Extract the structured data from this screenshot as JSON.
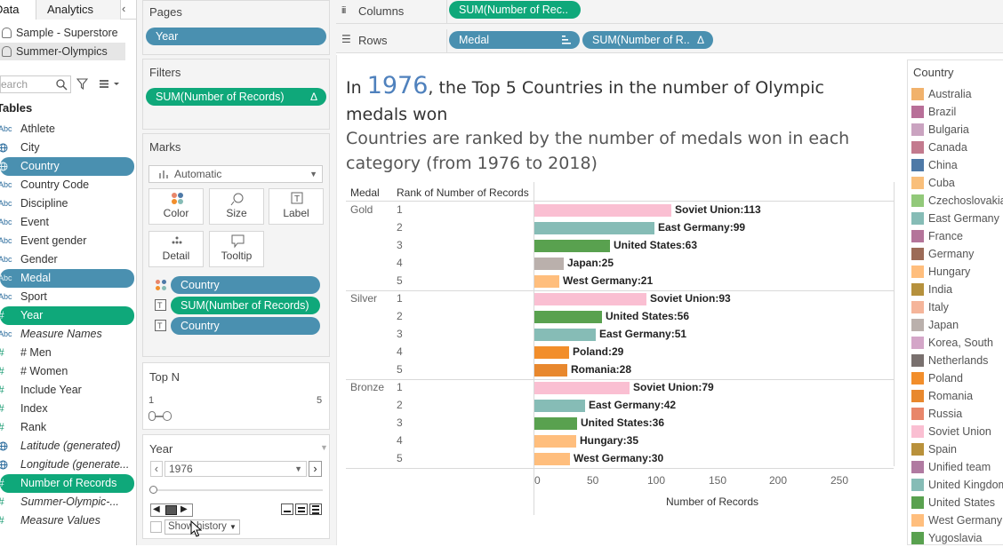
{
  "data_pane": {
    "tabs": [
      "Data",
      "Analytics"
    ],
    "collapse_icon": "chevron-left-icon",
    "datasources": [
      "Sample - Superstore",
      "Summer-Olympics"
    ],
    "search_placeholder": "earch",
    "tables_title": "Tables",
    "fields": [
      {
        "label": "Athlete",
        "icon": "Abc",
        "style": "",
        "type": "dim"
      },
      {
        "label": "City",
        "icon": "globe",
        "style": "",
        "type": "geo"
      },
      {
        "label": "Country",
        "icon": "globe",
        "style": "blue",
        "type": "geo"
      },
      {
        "label": "Country Code",
        "icon": "Abc",
        "style": "",
        "type": "dim"
      },
      {
        "label": "Discipline",
        "icon": "Abc",
        "style": "",
        "type": "dim"
      },
      {
        "label": "Event",
        "icon": "Abc",
        "style": "",
        "type": "dim"
      },
      {
        "label": "Event gender",
        "icon": "Abc",
        "style": "",
        "type": "dim"
      },
      {
        "label": "Gender",
        "icon": "Abc",
        "style": "",
        "type": "dim"
      },
      {
        "label": "Medal",
        "icon": "Abc",
        "style": "blue",
        "type": "dim"
      },
      {
        "label": "Sport",
        "icon": "Abc",
        "style": "",
        "type": "dim"
      },
      {
        "label": "Year",
        "icon": "#",
        "style": "green",
        "type": "num"
      },
      {
        "label": "Measure Names",
        "icon": "Abc",
        "style": "italic",
        "type": "dim"
      },
      {
        "label": "# Men",
        "icon": "#",
        "style": "",
        "type": "num"
      },
      {
        "label": "# Women",
        "icon": "#",
        "style": "",
        "type": "num"
      },
      {
        "label": "Include Year",
        "icon": "#",
        "style": "",
        "type": "num"
      },
      {
        "label": "Index",
        "icon": "#",
        "style": "",
        "type": "num"
      },
      {
        "label": "Rank",
        "icon": "#",
        "style": "",
        "type": "num"
      },
      {
        "label": "Latitude (generated)",
        "icon": "globe",
        "style": "italic",
        "type": "geo"
      },
      {
        "label": "Longitude (generate...",
        "icon": "globe",
        "style": "italic",
        "type": "geo"
      },
      {
        "label": "Number of Records",
        "icon": "#",
        "style": "green",
        "type": "num"
      },
      {
        "label": "Summer-Olympic-...",
        "icon": "#",
        "style": "italic",
        "type": "num"
      },
      {
        "label": "Measure Values",
        "icon": "#",
        "style": "italic",
        "type": "num"
      }
    ]
  },
  "pages": {
    "title": "Pages",
    "pill": "Year"
  },
  "filters": {
    "title": "Filters",
    "pill": "SUM(Number of Records)",
    "pill_icon": "Δ"
  },
  "marks": {
    "title": "Marks",
    "type": "Automatic",
    "buttons": [
      "Color",
      "Size",
      "Label",
      "Detail",
      "Tooltip"
    ],
    "pills": [
      {
        "icon": "color-dots-icon",
        "label": "Country"
      },
      {
        "icon": "text-T-icon",
        "label": "SUM(Number of Records)"
      },
      {
        "icon": "text-T-icon",
        "label": "Country"
      }
    ]
  },
  "topn": {
    "title": "Top N",
    "min": "1",
    "max": "5"
  },
  "year_card": {
    "title": "Year",
    "value": "1976",
    "show_history": "Show history"
  },
  "shelves": {
    "columns_label": "Columns",
    "rows_label": "Rows",
    "columns_pill": "SUM(Number of Rec..",
    "rows_pills": [
      "Medal",
      "SUM(Number of R.."
    ],
    "rows_pill_delta": "Δ"
  },
  "viz": {
    "title_prefix": "In ",
    "title_year": "1976",
    "title_rest": ",  the Top 5 Countries in the number of Olympic medals won",
    "subtitle": "Countries are ranked by the number of medals won in each category (from 1976 to 2018)",
    "col_medal": "Medal",
    "col_rank": "Rank of Number of Records"
  },
  "chart_data": {
    "type": "bar",
    "xlabel": "Number of Records",
    "xticks": [
      0,
      50,
      100,
      150,
      200,
      250
    ],
    "xlim": [
      0,
      300
    ],
    "groups": [
      {
        "medal": "Gold",
        "rows": [
          {
            "rank": 1,
            "country": "Soviet Union",
            "value": 113
          },
          {
            "rank": 2,
            "country": "East Germany",
            "value": 99
          },
          {
            "rank": 3,
            "country": "United States",
            "value": 63
          },
          {
            "rank": 4,
            "country": "Japan",
            "value": 25
          },
          {
            "rank": 5,
            "country": "West Germany",
            "value": 21
          }
        ]
      },
      {
        "medal": "Silver",
        "rows": [
          {
            "rank": 1,
            "country": "Soviet Union",
            "value": 93
          },
          {
            "rank": 2,
            "country": "United States",
            "value": 56
          },
          {
            "rank": 3,
            "country": "East Germany",
            "value": 51
          },
          {
            "rank": 4,
            "country": "Poland",
            "value": 29
          },
          {
            "rank": 5,
            "country": "Romania",
            "value": 28
          }
        ]
      },
      {
        "medal": "Bronze",
        "rows": [
          {
            "rank": 1,
            "country": "Soviet Union",
            "value": 79
          },
          {
            "rank": 2,
            "country": "East Germany",
            "value": 42
          },
          {
            "rank": 3,
            "country": "United States",
            "value": 36
          },
          {
            "rank": 4,
            "country": "Hungary",
            "value": 35
          },
          {
            "rank": 5,
            "country": "West Germany",
            "value": 30
          }
        ]
      }
    ]
  },
  "legend": {
    "title": "Country",
    "items": [
      {
        "label": "Australia",
        "color": "#f1b26c"
      },
      {
        "label": "Brazil",
        "color": "#b86f98"
      },
      {
        "label": "Bulgaria",
        "color": "#caa3c0"
      },
      {
        "label": "Canada",
        "color": "#c37a8e"
      },
      {
        "label": "China",
        "color": "#4e79a7"
      },
      {
        "label": "Cuba",
        "color": "#f9bf7b"
      },
      {
        "label": "Czechoslovakia",
        "color": "#92c97a"
      },
      {
        "label": "East Germany",
        "color": "#86bcb6"
      },
      {
        "label": "France",
        "color": "#b4749a"
      },
      {
        "label": "Germany",
        "color": "#9c6b57"
      },
      {
        "label": "Hungary",
        "color": "#ffbe7d"
      },
      {
        "label": "India",
        "color": "#b6913d"
      },
      {
        "label": "Italy",
        "color": "#f5b59a"
      },
      {
        "label": "Japan",
        "color": "#bab0ac"
      },
      {
        "label": "Korea, South",
        "color": "#d4a6c8"
      },
      {
        "label": "Netherlands",
        "color": "#79706e"
      },
      {
        "label": "Poland",
        "color": "#f28e2b"
      },
      {
        "label": "Romania",
        "color": "#e8882e"
      },
      {
        "label": "Russia",
        "color": "#e8866a"
      },
      {
        "label": "Soviet Union",
        "color": "#fabfd2"
      },
      {
        "label": "Spain",
        "color": "#b9913b"
      },
      {
        "label": "Unified team",
        "color": "#b07aa1"
      },
      {
        "label": "United Kingdom",
        "color": "#86bcb6"
      },
      {
        "label": "United States",
        "color": "#59a14f"
      },
      {
        "label": "West Germany",
        "color": "#ffbe7d"
      },
      {
        "label": "Yugoslavia",
        "color": "#59a14f"
      }
    ]
  }
}
